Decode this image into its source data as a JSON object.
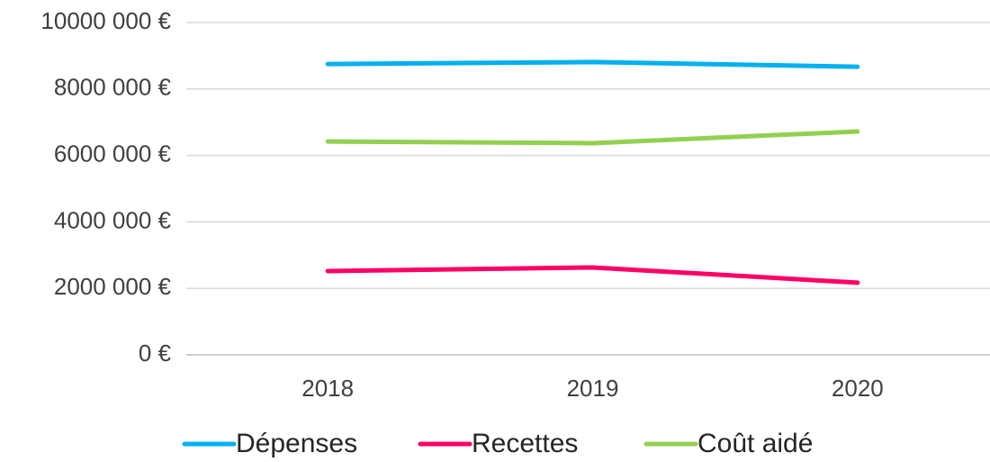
{
  "chart_data": {
    "type": "line",
    "categories": [
      "2018",
      "2019",
      "2020"
    ],
    "series": [
      {
        "name": "Dépenses",
        "color": "#00b0f0",
        "values": [
          8750000,
          8810000,
          8670000
        ]
      },
      {
        "name": "Recettes",
        "color": "#ff0066",
        "values": [
          2520000,
          2630000,
          2170000
        ]
      },
      {
        "name": "Coût aidé",
        "color": "#92d050",
        "values": [
          6420000,
          6370000,
          6720000
        ]
      }
    ],
    "ylim": [
      0,
      10000000
    ],
    "yticks": [
      {
        "value": 0,
        "label": "0 €"
      },
      {
        "value": 2000000,
        "label": "2000 000 €"
      },
      {
        "value": 4000000,
        "label": "4000 000 €"
      },
      {
        "value": 6000000,
        "label": "6000 000 €"
      },
      {
        "value": 8000000,
        "label": "8000 000 €"
      },
      {
        "value": 10000000,
        "label": "10000 000 €"
      }
    ],
    "grid": true,
    "legend": "bottom"
  }
}
